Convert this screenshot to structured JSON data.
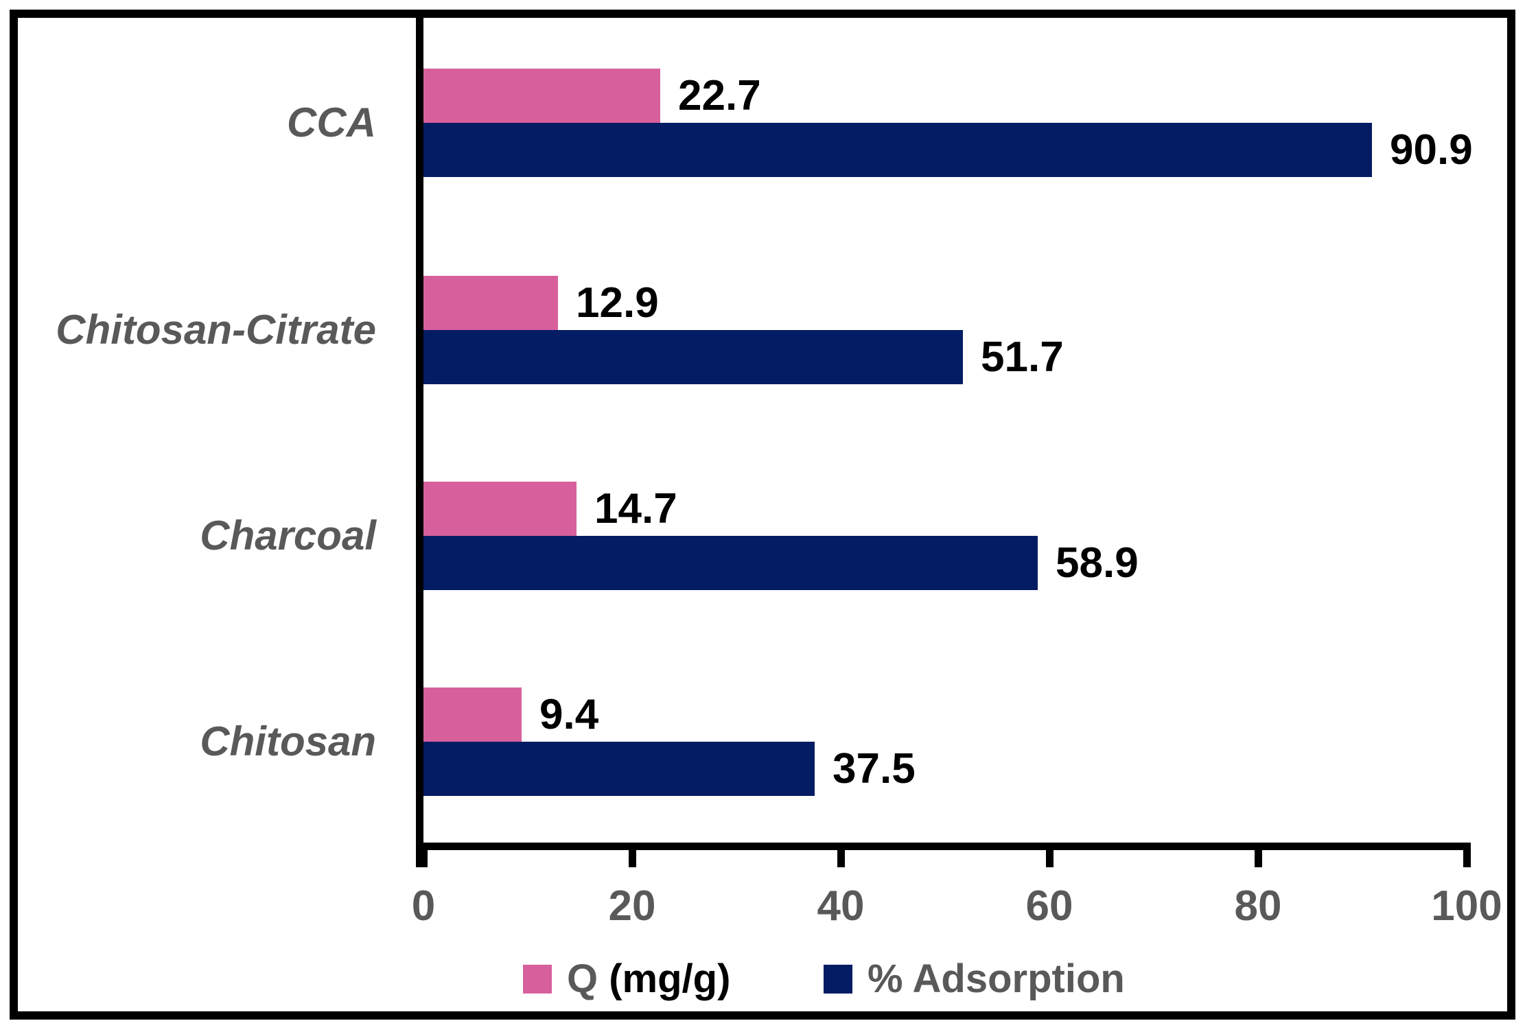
{
  "figure": {
    "background_color": "#ffffff",
    "frame_color": "#000000",
    "axis_color": "#000000"
  },
  "chart_data": {
    "type": "bar",
    "orientation": "horizontal",
    "title": "",
    "categories": [
      "CCA",
      "Chitosan-Citrate",
      "Charcoal",
      "Chitosan"
    ],
    "series": [
      {
        "name": "Q (mg/g)",
        "color": "#d7609c",
        "values": [
          22.7,
          12.9,
          14.7,
          9.4
        ]
      },
      {
        "name": "% Adsorption",
        "color": "#041c63",
        "values": [
          90.9,
          51.7,
          58.9,
          37.5
        ]
      }
    ],
    "value_labels": {
      "show": true,
      "decimals": 1,
      "color": "#000000"
    },
    "x_axis": {
      "min": 0,
      "max": 100,
      "ticks": [
        0,
        20,
        40,
        60,
        80,
        100
      ],
      "tick_labels": [
        "0",
        "20",
        "40",
        "60",
        "80",
        "100"
      ],
      "tick_label_color": "#595959"
    },
    "category_label_color": "#595959",
    "grid": false,
    "legend": {
      "position": "bottom",
      "items": [
        {
          "swatch_color": "#d7609c",
          "parts": [
            {
              "text": "Q ",
              "color": "#595959"
            },
            {
              "text": "(mg/g)",
              "color": "#000000"
            }
          ]
        },
        {
          "swatch_color": "#041c63",
          "parts": [
            {
              "text": "% Adsorption",
              "color": "#595959"
            }
          ]
        }
      ]
    }
  }
}
